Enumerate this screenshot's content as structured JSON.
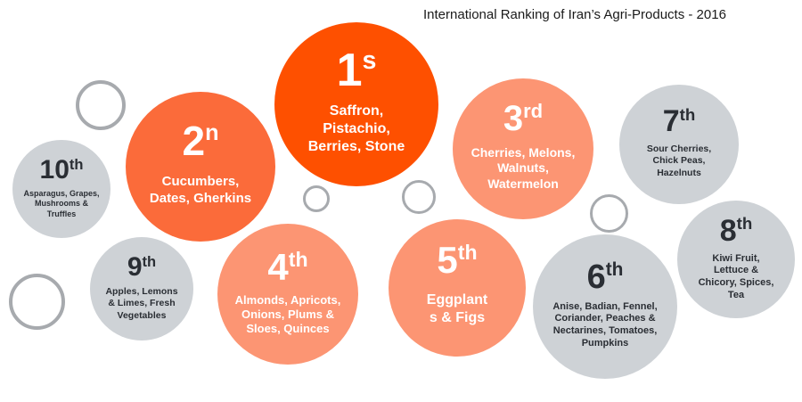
{
  "title": "International Ranking of Iran’s Agri-Products - 2016",
  "colors": {
    "first": "#fe5000",
    "second": "#fb6b3a",
    "third_to_fifth": "#fc9573",
    "sixth_to_tenth": "#ced2d6",
    "ring": "#a7aaae"
  },
  "rankings": {
    "r1": {
      "rank": "1",
      "suffix": "s",
      "products": "Saffron,\nPistachio,\nBerries, Stone"
    },
    "r2": {
      "rank": "2",
      "suffix": "n",
      "products": "Cucumbers,\nDates, Gherkins"
    },
    "r3": {
      "rank": "3",
      "suffix": "rd",
      "products": "Cherries, Melons,\nWalnuts,\nWatermelon"
    },
    "r4": {
      "rank": "4",
      "suffix": "th",
      "products": "Almonds, Apricots,\nOnions, Plums &\nSloes, Quinces"
    },
    "r5": {
      "rank": "5",
      "suffix": "th",
      "products": "Eggplant\ns & Figs"
    },
    "r6": {
      "rank": "6",
      "suffix": "th",
      "products": "Anise, Badian, Fennel,\nCoriander, Peaches &\nNectarines, Tomatoes,\nPumpkins"
    },
    "r7": {
      "rank": "7",
      "suffix": "th",
      "products": "Sour Cherries,\nChick Peas,\nHazelnuts"
    },
    "r8": {
      "rank": "8",
      "suffix": "th",
      "products": "Kiwi Fruit,\nLettuce &\nChicory, Spices,\nTea"
    },
    "r9": {
      "rank": "9",
      "suffix": "th",
      "products": "Apples, Lemons\n& Limes, Fresh\nVegetables"
    },
    "r10": {
      "rank": "10",
      "suffix": "th",
      "products": "Asparagus, Grapes,\nMushrooms &\nTruffles"
    }
  }
}
